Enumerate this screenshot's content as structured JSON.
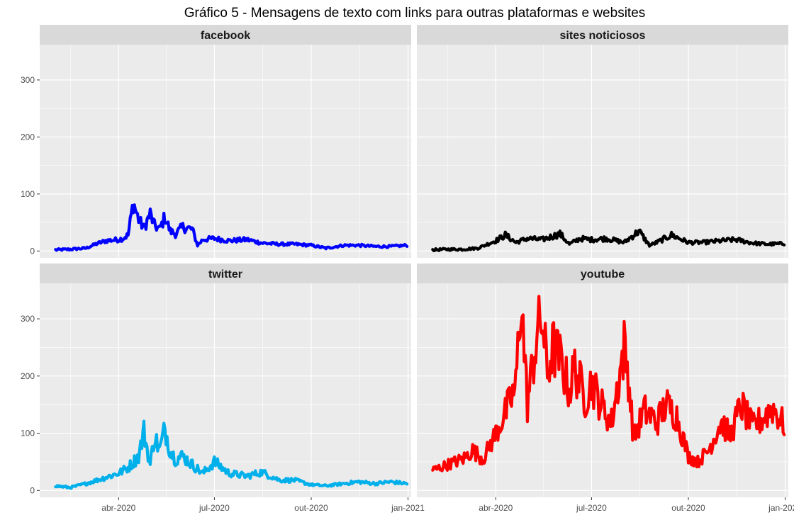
{
  "chart_data": {
    "type": "line",
    "title": "Gráfico 5 - Mensagens de texto com links para outras plataformas e websites",
    "xlabel": "",
    "ylabel": "",
    "layout": "facet grid 2x2, shared axes",
    "grid": true,
    "legend": "none",
    "xlim": [
      "2020-01-17",
      "2021-01-04"
    ],
    "ylim": [
      -12,
      362
    ],
    "x_ticks": [
      "2020-04-01",
      "2020-07-01",
      "2020-10-01",
      "2021-01-01"
    ],
    "x_tick_labels": [
      "abr-2020",
      "jul-2020",
      "out-2020",
      "jan-2021"
    ],
    "y_ticks": [
      0,
      100,
      200,
      300
    ],
    "y_tick_labels": [
      "0",
      "100",
      "200",
      "300"
    ],
    "series": [
      {
        "name": "facebook",
        "color": "#0000ff",
        "x": [
          "2020-02-01",
          "2020-02-15",
          "2020-03-01",
          "2020-03-10",
          "2020-03-20",
          "2020-04-01",
          "2020-04-05",
          "2020-04-10",
          "2020-04-15",
          "2020-04-20",
          "2020-04-25",
          "2020-05-01",
          "2020-05-05",
          "2020-05-10",
          "2020-05-15",
          "2020-05-20",
          "2020-05-25",
          "2020-06-01",
          "2020-06-10",
          "2020-06-15",
          "2020-06-20",
          "2020-07-01",
          "2020-07-15",
          "2020-08-01",
          "2020-08-15",
          "2020-09-01",
          "2020-09-15",
          "2020-10-01",
          "2020-10-15",
          "2020-11-01",
          "2020-11-15",
          "2020-12-01",
          "2020-12-15",
          "2020-12-31"
        ],
        "values": [
          2,
          3,
          5,
          12,
          18,
          20,
          22,
          28,
          85,
          55,
          40,
          65,
          45,
          38,
          60,
          35,
          30,
          42,
          38,
          10,
          20,
          22,
          18,
          20,
          14,
          12,
          12,
          10,
          5,
          10,
          10,
          8,
          8,
          10
        ]
      },
      {
        "name": "sites noticiosos",
        "color": "#000000",
        "x": [
          "2020-02-01",
          "2020-02-15",
          "2020-03-01",
          "2020-03-15",
          "2020-04-01",
          "2020-04-10",
          "2020-04-20",
          "2020-05-01",
          "2020-05-15",
          "2020-06-01",
          "2020-06-10",
          "2020-06-20",
          "2020-07-01",
          "2020-07-15",
          "2020-08-01",
          "2020-08-15",
          "2020-08-25",
          "2020-09-01",
          "2020-09-15",
          "2020-10-01",
          "2020-10-15",
          "2020-11-01",
          "2020-11-15",
          "2020-12-01",
          "2020-12-15",
          "2020-12-31"
        ],
        "values": [
          2,
          3,
          3,
          5,
          18,
          28,
          15,
          22,
          20,
          30,
          12,
          22,
          20,
          22,
          15,
          35,
          10,
          15,
          28,
          15,
          15,
          18,
          20,
          14,
          12,
          13
        ]
      },
      {
        "name": "twitter",
        "color": "#00b0eb",
        "x": [
          "2020-02-01",
          "2020-02-15",
          "2020-03-01",
          "2020-03-15",
          "2020-04-01",
          "2020-04-10",
          "2020-04-20",
          "2020-04-25",
          "2020-05-01",
          "2020-05-05",
          "2020-05-10",
          "2020-05-15",
          "2020-05-20",
          "2020-05-25",
          "2020-06-01",
          "2020-06-10",
          "2020-06-20",
          "2020-07-01",
          "2020-07-15",
          "2020-08-01",
          "2020-08-15",
          "2020-09-01",
          "2020-09-15",
          "2020-10-01",
          "2020-10-15",
          "2020-11-01",
          "2020-11-15",
          "2020-12-01",
          "2020-12-15",
          "2020-12-31"
        ],
        "values": [
          8,
          5,
          12,
          20,
          30,
          40,
          60,
          103,
          45,
          95,
          70,
          108,
          70,
          55,
          60,
          45,
          30,
          50,
          30,
          25,
          32,
          18,
          18,
          10,
          8,
          12,
          15,
          12,
          15,
          12
        ]
      },
      {
        "name": "youtube",
        "color": "#ff0000",
        "x": [
          "2020-02-01",
          "2020-02-15",
          "2020-03-01",
          "2020-03-10",
          "2020-03-20",
          "2020-04-01",
          "2020-04-10",
          "2020-04-20",
          "2020-04-25",
          "2020-05-01",
          "2020-05-10",
          "2020-05-15",
          "2020-05-20",
          "2020-05-25",
          "2020-06-01",
          "2020-06-10",
          "2020-06-15",
          "2020-06-25",
          "2020-07-01",
          "2020-07-10",
          "2020-07-20",
          "2020-08-01",
          "2020-08-05",
          "2020-08-10",
          "2020-08-20",
          "2020-09-01",
          "2020-09-10",
          "2020-09-20",
          "2020-10-01",
          "2020-10-10",
          "2020-10-20",
          "2020-11-01",
          "2020-11-10",
          "2020-11-20",
          "2020-12-01",
          "2020-12-10",
          "2020-12-20",
          "2020-12-31"
        ],
        "values": [
          35,
          45,
          55,
          70,
          55,
          100,
          135,
          180,
          345,
          150,
          270,
          300,
          205,
          250,
          230,
          175,
          215,
          160,
          190,
          150,
          120,
          250,
          200,
          90,
          140,
          120,
          150,
          130,
          60,
          50,
          70,
          120,
          95,
          150,
          110,
          125,
          145,
          115
        ]
      }
    ]
  }
}
